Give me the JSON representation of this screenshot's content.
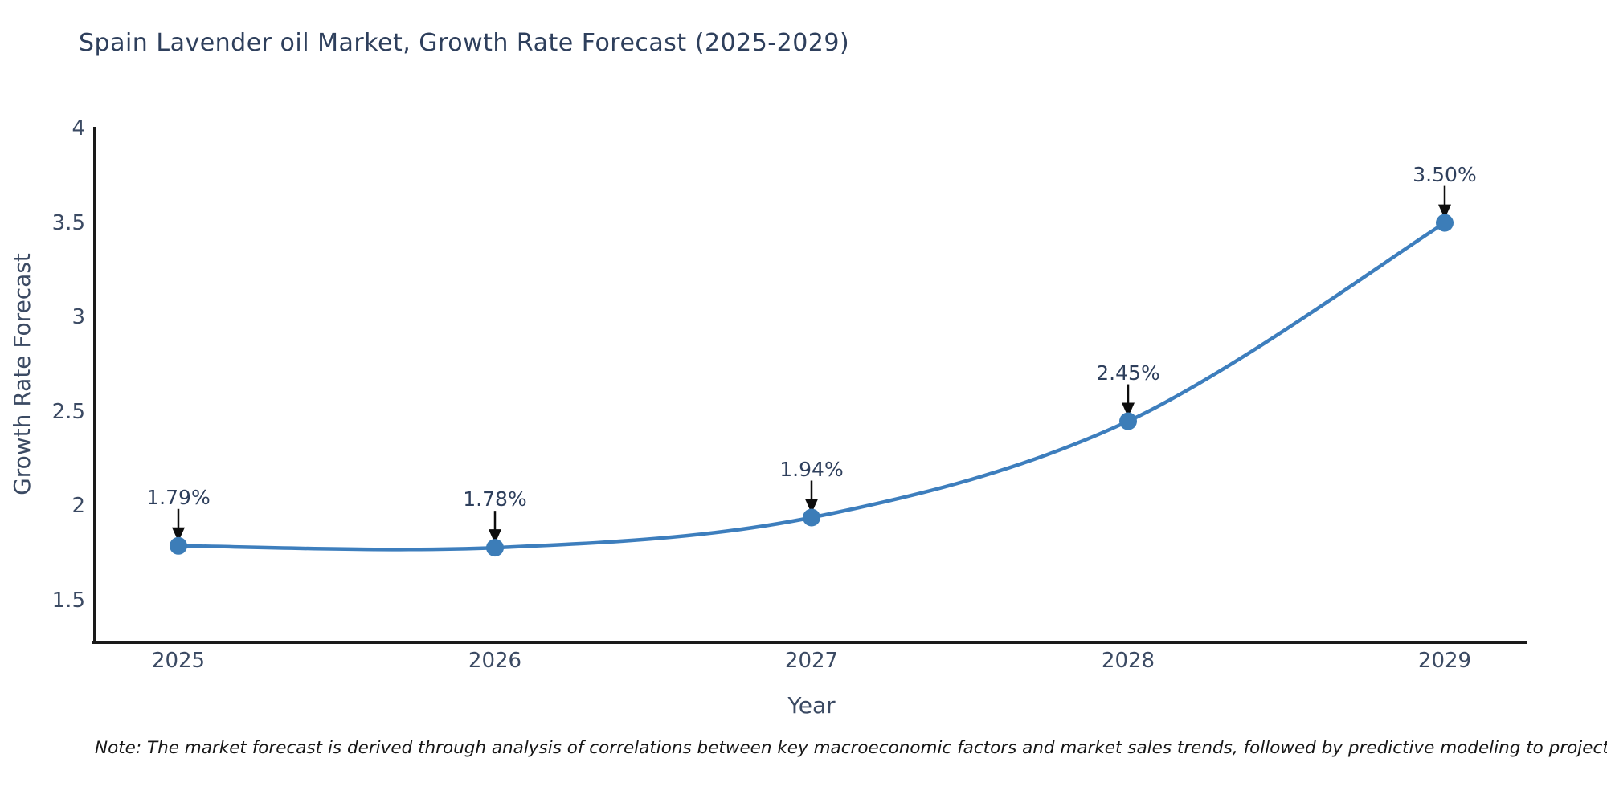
{
  "title": "Spain Lavender oil Market, Growth Rate Forecast (2025-2029)",
  "note": "Note: The market forecast is derived through analysis of correlations between key macroeconomic factors and market sales trends, followed by predictive modeling to project future sales",
  "chart_data": {
    "type": "line",
    "x": [
      2025,
      2026,
      2027,
      2028,
      2029
    ],
    "xtick_labels": [
      "2025",
      "2026",
      "2027",
      "2028",
      "2029"
    ],
    "values": [
      1.79,
      1.78,
      1.94,
      2.45,
      3.5
    ],
    "point_labels": [
      "1.79%",
      "1.78%",
      "1.94%",
      "2.45%",
      "3.50%"
    ],
    "title": "Spain Lavender oil Market, Growth Rate Forecast (2025-2029)",
    "xlabel": "Year",
    "ylabel": "Growth Rate Forecast",
    "ylim": [
      1.28,
      4
    ],
    "yticks": [
      1.5,
      2,
      2.5,
      3,
      3.5,
      4
    ],
    "ytick_labels": [
      "1.5",
      "2",
      "2.5",
      "3",
      "3.5",
      "4"
    ],
    "grid": false,
    "legend_position": "none",
    "annotations_style": "value label with down arrow to each point",
    "colors": {
      "line": "#3d7ebd",
      "marker": "#3c7db8",
      "axis": "#1a1a1a",
      "arrow": "#0d0d0d",
      "text": "#2e3f5c"
    }
  }
}
